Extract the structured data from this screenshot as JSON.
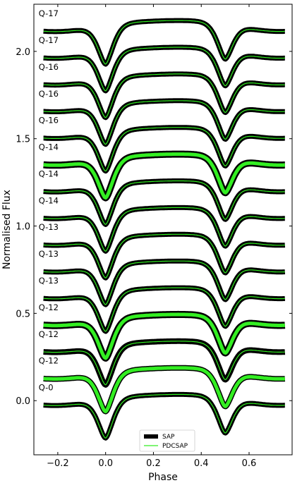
{
  "chart_data": {
    "type": "line",
    "title": "",
    "xlabel": "Phase",
    "ylabel": "Normalised Flux",
    "xlim": [
      -0.3,
      0.78
    ],
    "ylim": [
      -0.31,
      2.27
    ],
    "xticks": [
      -0.2,
      0.0,
      0.2,
      0.4,
      0.6
    ],
    "xtick_labels": [
      "−0.2",
      "0.0",
      "0.2",
      "0.4",
      "0.6"
    ],
    "yticks": [
      0.0,
      0.5,
      1.0,
      1.5,
      2.0
    ],
    "ytick_labels": [
      "0.0",
      "0.5",
      "1.0",
      "1.5",
      "2.0"
    ],
    "grid": false,
    "legend_position": "bottom-center",
    "phase_range": [
      -0.26,
      0.75
    ],
    "primary_eclipse_depth": 0.22,
    "secondary_eclipse_depth": 0.2,
    "series": [
      {
        "name": "SAP",
        "color": "#000000"
      },
      {
        "name": "PDCSAP",
        "color": "#33ee22"
      }
    ],
    "quarters": [
      {
        "label": "Q-0",
        "offset": 0.0
      },
      {
        "label": "Q-12",
        "offset": 0.152
      },
      {
        "label": "Q-12",
        "offset": 0.305
      },
      {
        "label": "Q-12",
        "offset": 0.458
      },
      {
        "label": "Q-13",
        "offset": 0.611
      },
      {
        "label": "Q-13",
        "offset": 0.764
      },
      {
        "label": "Q-13",
        "offset": 0.917
      },
      {
        "label": "Q-14",
        "offset": 1.07
      },
      {
        "label": "Q-14",
        "offset": 1.223
      },
      {
        "label": "Q-14",
        "offset": 1.376
      },
      {
        "label": "Q-16",
        "offset": 1.529
      },
      {
        "label": "Q-16",
        "offset": 1.682
      },
      {
        "label": "Q-16",
        "offset": 1.835
      },
      {
        "label": "Q-17",
        "offset": 1.988
      },
      {
        "label": "Q-17",
        "offset": 2.141
      }
    ]
  }
}
